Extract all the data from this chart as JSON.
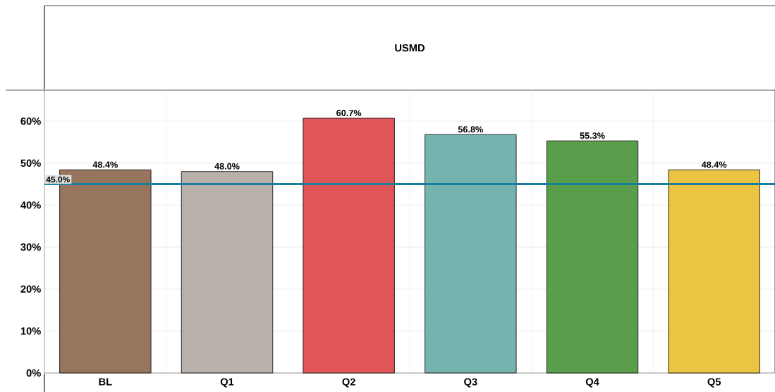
{
  "chart_data": {
    "type": "bar",
    "title": "USMD",
    "categories": [
      "BL",
      "Q1",
      "Q2",
      "Q3",
      "Q4",
      "Q5"
    ],
    "values": [
      48.4,
      48.0,
      60.7,
      56.8,
      55.3,
      48.4
    ],
    "colors": [
      "#98765e",
      "#b8b0aa",
      "#e05558",
      "#75b4ae",
      "#5a9e4c",
      "#ebc444"
    ],
    "value_labels": [
      "48.4%",
      "48.0%",
      "60.7%",
      "56.8%",
      "55.3%",
      "48.4%"
    ],
    "ylim": [
      0,
      67.4
    ],
    "yticks": [
      {
        "value": 0,
        "label": "0%"
      },
      {
        "value": 10,
        "label": "10%"
      },
      {
        "value": 20,
        "label": "20%"
      },
      {
        "value": 30,
        "label": "30%"
      },
      {
        "value": 40,
        "label": "40%"
      },
      {
        "value": 50,
        "label": "50%"
      },
      {
        "value": 60,
        "label": "60%"
      }
    ],
    "ref_lines": [
      {
        "axis": "y",
        "value": 45.0,
        "label": "45.0%",
        "color": "#177e9e"
      }
    ],
    "grid": true
  }
}
